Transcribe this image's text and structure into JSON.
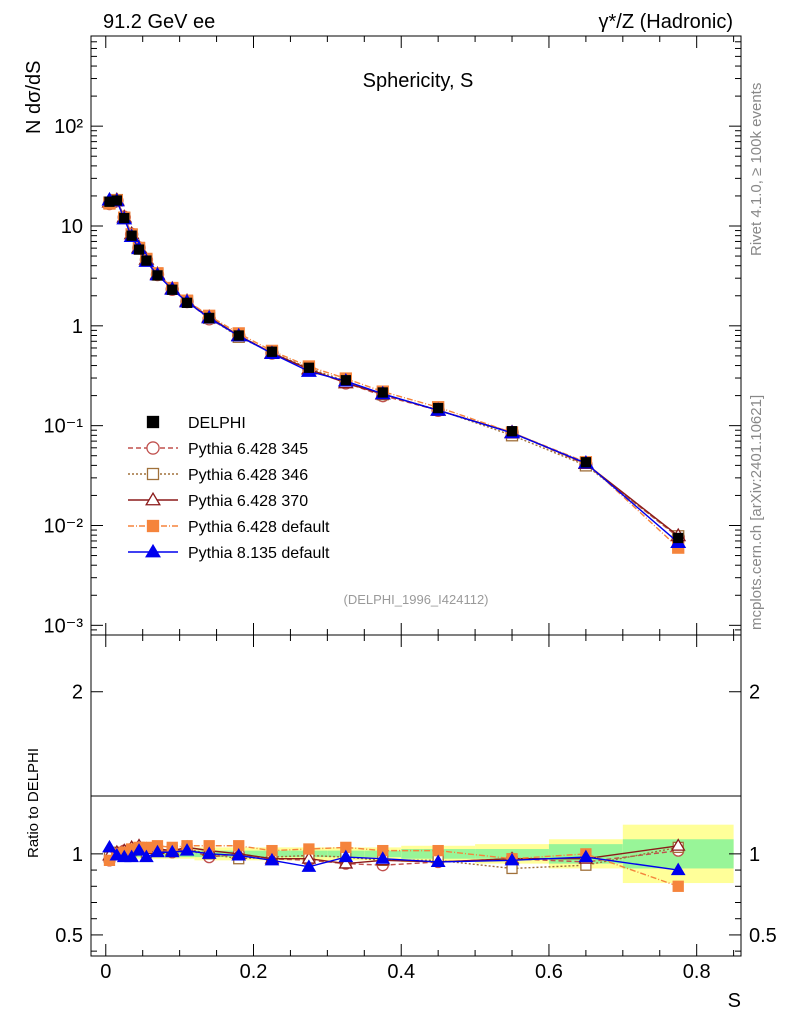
{
  "header": {
    "left": "91.2 GeV ee",
    "right": "γ*/Z (Hadronic)"
  },
  "side_labels": {
    "rivet": "Rivet 4.1.0, ≥ 100k events",
    "mcplots": "mcplots.cern.ch [arXiv:2401.10621]"
  },
  "chart_data": {
    "type": "line",
    "title": "Sphericity, S",
    "xlabel": "S",
    "ylabel": "N  dσ/dS",
    "ratio_ylabel": "Ratio to DELPHI",
    "watermark": "(DELPHI_1996_I424112)",
    "xlim": [
      -0.02,
      0.86
    ],
    "ylim": [
      0.0008,
      800
    ],
    "ratio_ylim": [
      0.37,
      2.35
    ],
    "x_ticks": [
      "0",
      "0.2",
      "0.4",
      "0.6",
      "0.8"
    ],
    "y_ticks": [
      "10⁻³",
      "10⁻²",
      "10⁻¹",
      "1",
      "10",
      "10²"
    ],
    "ratio_ticks": [
      "0.5",
      "1",
      "2"
    ],
    "bins": [
      [
        0.0,
        0.01
      ],
      [
        0.01,
        0.02
      ],
      [
        0.02,
        0.03
      ],
      [
        0.03,
        0.04
      ],
      [
        0.04,
        0.05
      ],
      [
        0.05,
        0.06
      ],
      [
        0.06,
        0.08
      ],
      [
        0.08,
        0.1
      ],
      [
        0.1,
        0.12
      ],
      [
        0.12,
        0.16
      ],
      [
        0.16,
        0.2
      ],
      [
        0.2,
        0.25
      ],
      [
        0.25,
        0.3
      ],
      [
        0.3,
        0.35
      ],
      [
        0.35,
        0.4
      ],
      [
        0.4,
        0.5
      ],
      [
        0.5,
        0.6
      ],
      [
        0.6,
        0.7
      ],
      [
        0.7,
        0.85
      ]
    ],
    "x": [
      0.005,
      0.015,
      0.025,
      0.035,
      0.045,
      0.055,
      0.07,
      0.09,
      0.11,
      0.14,
      0.18,
      0.225,
      0.275,
      0.325,
      0.375,
      0.45,
      0.55,
      0.65,
      0.775
    ],
    "data_values": [
      17.5,
      18.0,
      12.0,
      8.0,
      5.8,
      4.5,
      3.2,
      2.3,
      1.7,
      1.2,
      0.8,
      0.55,
      0.38,
      0.285,
      0.215,
      0.15,
      0.088,
      0.043,
      0.0075
    ],
    "band_inner": [
      0.02,
      0.02,
      0.02,
      0.02,
      0.02,
      0.02,
      0.02,
      0.02,
      0.02,
      0.02,
      0.02,
      0.02,
      0.02,
      0.02,
      0.02,
      0.03,
      0.03,
      0.06,
      0.09
    ],
    "band_outer": [
      0.03,
      0.03,
      0.03,
      0.03,
      0.03,
      0.03,
      0.03,
      0.03,
      0.03,
      0.04,
      0.04,
      0.04,
      0.04,
      0.04,
      0.04,
      0.05,
      0.06,
      0.09,
      0.18
    ],
    "series": [
      {
        "name": "Pythia 6.428 345",
        "color": "#c0504d",
        "marker": "circle-open",
        "dash": "5,3",
        "ratios": [
          0.96,
          1.0,
          1.02,
          1.03,
          1.04,
          1.02,
          1.02,
          1.01,
          1.03,
          0.98,
          1.0,
          0.97,
          0.96,
          0.94,
          0.93,
          0.95,
          0.97,
          0.95,
          1.02
        ]
      },
      {
        "name": "Pythia 6.428 346",
        "color": "#a0703a",
        "marker": "square-open",
        "dash": "2,2",
        "ratios": [
          0.98,
          1.01,
          1.0,
          1.02,
          1.03,
          1.01,
          1.02,
          1.02,
          1.03,
          1.0,
          0.97,
          0.98,
          0.99,
          0.98,
          0.96,
          0.96,
          0.91,
          0.93,
          1.04
        ]
      },
      {
        "name": "Pythia 6.428 370",
        "color": "#8b1a1a",
        "marker": "triangle-open",
        "dash": "",
        "ratios": [
          0.99,
          1.01,
          1.02,
          1.04,
          1.05,
          1.03,
          1.03,
          1.02,
          1.04,
          1.02,
          1.0,
          0.97,
          0.97,
          0.94,
          0.96,
          0.95,
          0.97,
          0.97,
          1.05
        ]
      },
      {
        "name": "Pythia 6.428 default",
        "color": "#f5843c",
        "marker": "square-filled",
        "dash": "6,2,1,2",
        "ratios": [
          0.96,
          1.0,
          1.01,
          1.03,
          1.04,
          1.04,
          1.05,
          1.04,
          1.05,
          1.05,
          1.05,
          1.02,
          1.03,
          1.04,
          1.02,
          1.02,
          0.97,
          1.0,
          0.8
        ]
      },
      {
        "name": "Pythia 8.135 default",
        "color": "#0000ee",
        "marker": "triangle-filled",
        "dash": "",
        "ratios": [
          1.04,
          0.99,
          0.98,
          0.98,
          1.02,
          0.98,
          1.01,
          1.01,
          1.02,
          1.0,
          0.99,
          0.96,
          0.92,
          0.98,
          0.97,
          0.95,
          0.96,
          0.98,
          0.9
        ]
      }
    ],
    "legend": [
      {
        "label": "DELPHI",
        "color": "#000000",
        "marker": "square-filled",
        "dash": "none"
      },
      {
        "label": "Pythia 6.428 345",
        "color": "#c0504d",
        "marker": "circle-open",
        "dash": "5,3"
      },
      {
        "label": "Pythia 6.428 346",
        "color": "#a0703a",
        "marker": "square-open",
        "dash": "2,2"
      },
      {
        "label": "Pythia 6.428 370",
        "color": "#8b1a1a",
        "marker": "triangle-open",
        "dash": ""
      },
      {
        "label": "Pythia 6.428 default",
        "color": "#f5843c",
        "marker": "square-filled",
        "dash": "6,2,1,2"
      },
      {
        "label": "Pythia 8.135 default",
        "color": "#0000ee",
        "marker": "triangle-filled",
        "dash": ""
      }
    ]
  }
}
